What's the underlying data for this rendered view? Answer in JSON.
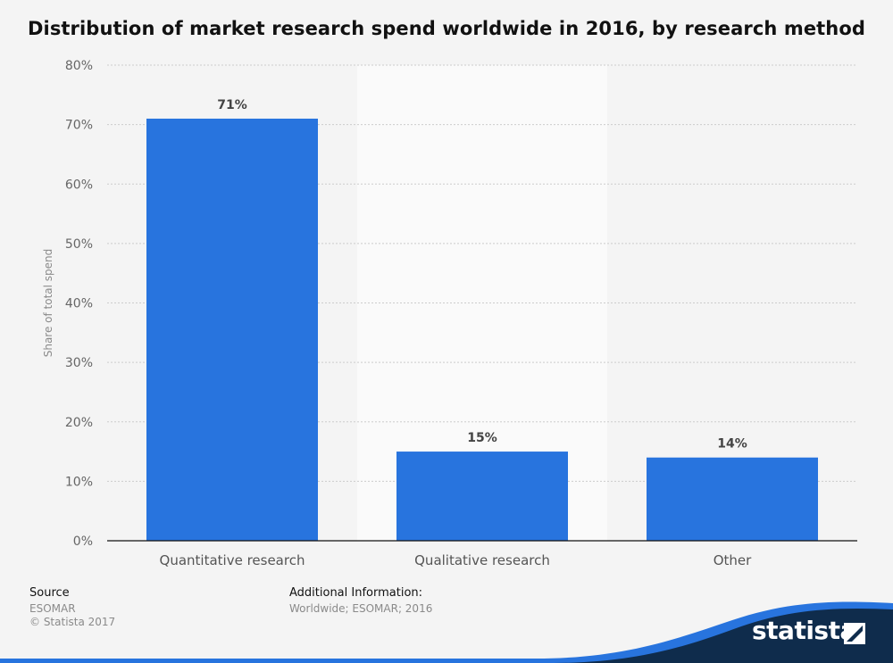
{
  "chart_data": {
    "type": "bar",
    "title": "Distribution of market research spend worldwide in 2016, by research method",
    "categories": [
      "Quantitative research",
      "Qualitative research",
      "Other"
    ],
    "values": [
      71,
      15,
      14
    ],
    "value_labels": [
      "71%",
      "15%",
      "14%"
    ],
    "xlabel": "",
    "ylabel": "Share of total spend",
    "ylim": [
      0,
      80
    ],
    "yticks": [
      0,
      10,
      20,
      30,
      40,
      50,
      60,
      70,
      80
    ],
    "ytick_labels": [
      "0%",
      "10%",
      "20%",
      "30%",
      "40%",
      "50%",
      "60%",
      "70%",
      "80%"
    ],
    "grid": true,
    "bar_color": "#2874de",
    "band_color": "#fafafa",
    "grid_color": "#cccccc"
  },
  "footer": {
    "source_label": "Source",
    "source_value": "ESOMAR",
    "copyright": "© Statista 2017",
    "additional_label": "Additional Information:",
    "additional_value": "Worldwide; ESOMAR; 2016"
  },
  "brand": {
    "name": "statista",
    "dark_color": "#0f2c4c",
    "accent_color": "#2874de"
  }
}
